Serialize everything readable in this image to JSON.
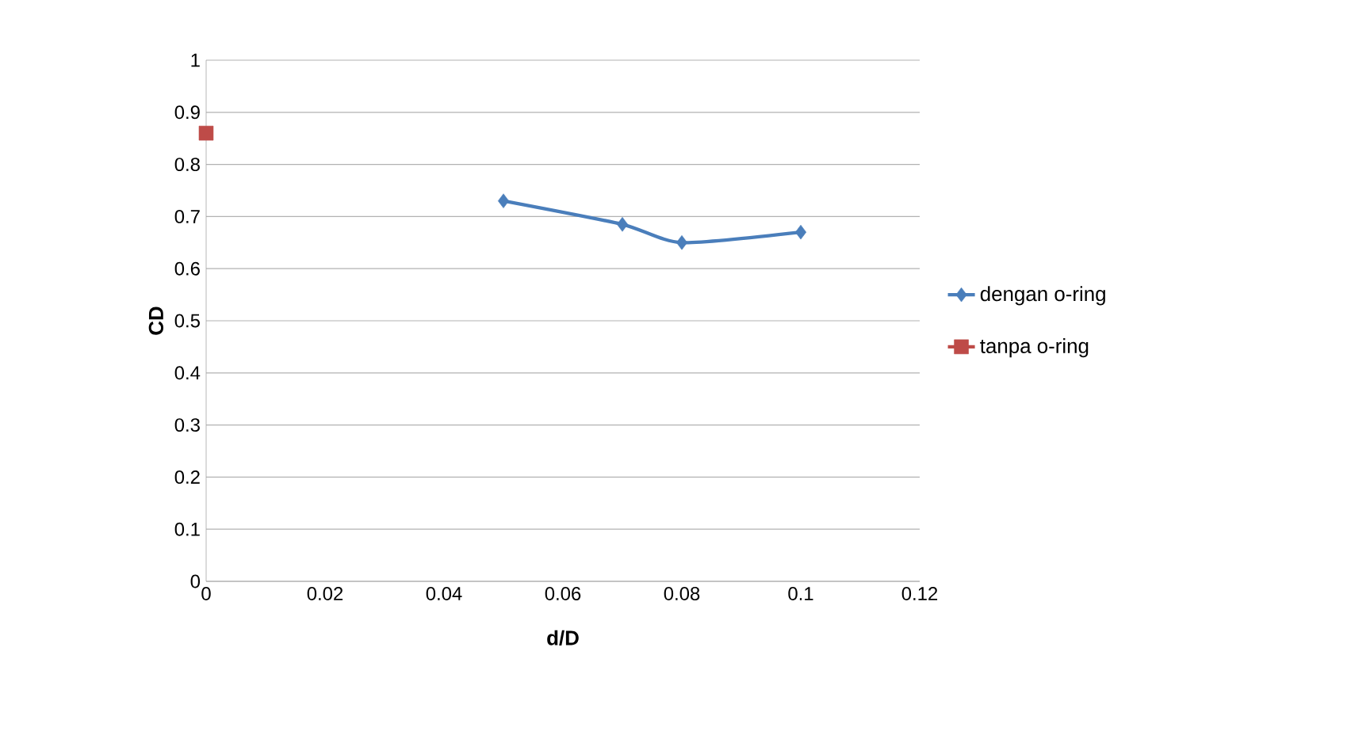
{
  "chart_data": {
    "type": "line",
    "xlabel": "d/D",
    "ylabel": "CD",
    "series": [
      {
        "name": "dengan o-ring",
        "color": "#4a7ebb",
        "marker": "diamond",
        "x": [
          0.05,
          0.07,
          0.08,
          0.1
        ],
        "values": [
          0.73,
          0.685,
          0.65,
          0.67
        ]
      },
      {
        "name": "tanpa o-ring",
        "color": "#be4b48",
        "marker": "square",
        "x": [
          0
        ],
        "values": [
          0.86
        ]
      }
    ],
    "xlim": [
      0,
      0.12
    ],
    "xticks": [
      0,
      0.02,
      0.04,
      0.06,
      0.08,
      0.1,
      0.12
    ],
    "ylim": [
      0,
      1
    ],
    "yticks": [
      0,
      0.1,
      0.2,
      0.3,
      0.4,
      0.5,
      0.6,
      0.7,
      0.8,
      0.9,
      1
    ],
    "grid": "y",
    "legend": "right"
  }
}
